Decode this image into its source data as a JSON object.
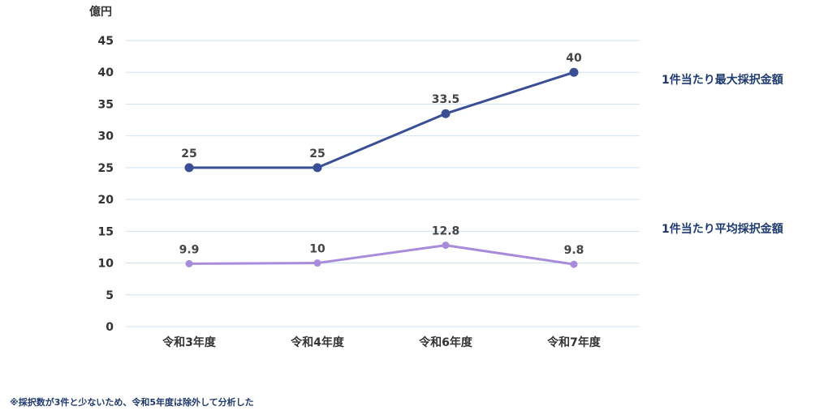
{
  "chart_data": {
    "type": "line",
    "ylabel": "億円",
    "categories": [
      "令和3年度",
      "令和4年度",
      "令和6年度",
      "令和7年度"
    ],
    "ylim": [
      0,
      45
    ],
    "yticks": [
      0,
      5,
      10,
      15,
      20,
      25,
      30,
      35,
      40,
      45
    ],
    "grid": true,
    "legend_placement": "right",
    "series": [
      {
        "name": "1件当たり最大採択金額",
        "values": [
          25,
          25,
          33.5,
          40
        ],
        "labels": [
          "25",
          "25",
          "33.5",
          "40"
        ],
        "color": "#3a4e96"
      },
      {
        "name": "1件当たり平均採択金額",
        "values": [
          9.9,
          10,
          12.8,
          9.8
        ],
        "labels": [
          "9.9",
          "10",
          "12.8",
          "9.8"
        ],
        "color": "#a98bdb"
      }
    ]
  },
  "footnote": "※採択数が3件と少ないため、令和5年度は除外して分析した",
  "colors": {
    "grid": "#cfe3f3",
    "tick_text": "#333333",
    "label_text": "#444444",
    "legend_text": "#1f3a6e"
  }
}
